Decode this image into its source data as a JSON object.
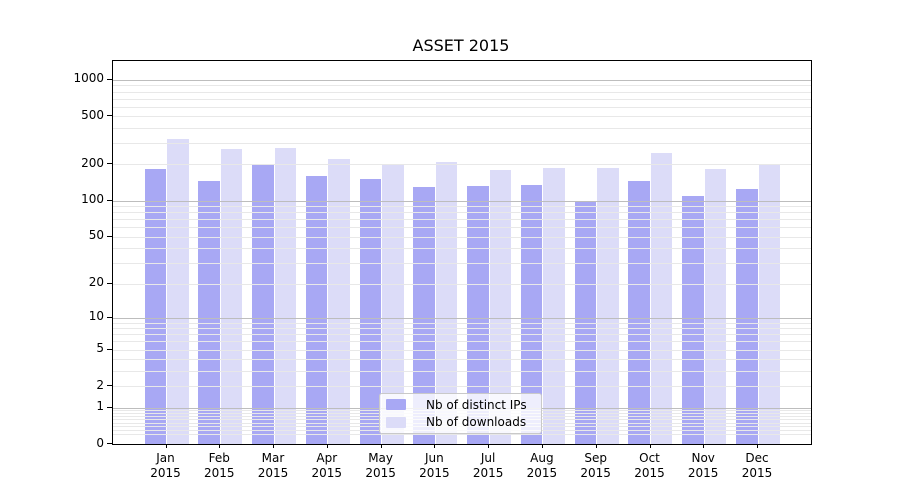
{
  "chart_data": {
    "type": "bar",
    "title": "ASSET 2015",
    "categories": [
      "Jan",
      "Feb",
      "Mar",
      "Apr",
      "May",
      "Jun",
      "Jul",
      "Aug",
      "Sep",
      "Oct",
      "Nov",
      "Dec"
    ],
    "category_sublabel": "2015",
    "series": [
      {
        "name": "Nb of distinct IPs",
        "color": "#a8a8f4",
        "values": [
          185,
          146,
          203,
          160,
          151,
          129,
          133,
          134,
          100,
          146,
          110,
          124
        ]
      },
      {
        "name": "Nb of downloads",
        "color": "#dcdcf8",
        "values": [
          325,
          267,
          271,
          220,
          202,
          211,
          179,
          188,
          186,
          250,
          184,
          203
        ]
      }
    ],
    "y_ticks": [
      0,
      1,
      2,
      5,
      10,
      20,
      50,
      100,
      200,
      500,
      1000
    ],
    "y_tick_labels": [
      "0",
      "1",
      "2",
      "5",
      "10",
      "20",
      "50",
      "100",
      "200",
      "500",
      "1000"
    ],
    "y_scale": "log10(1+x)",
    "ylim": [
      0,
      1430
    ],
    "grid": "major and minor horizontal gridlines, drawn above bars",
    "grid_major_color": "#bdbdbd",
    "grid_minor_color": "#e8e8e8",
    "legend_position": "lower center",
    "legend_border_color": "#c9c9c9",
    "axis_color": "#000000",
    "background_color": "#ffffff"
  }
}
